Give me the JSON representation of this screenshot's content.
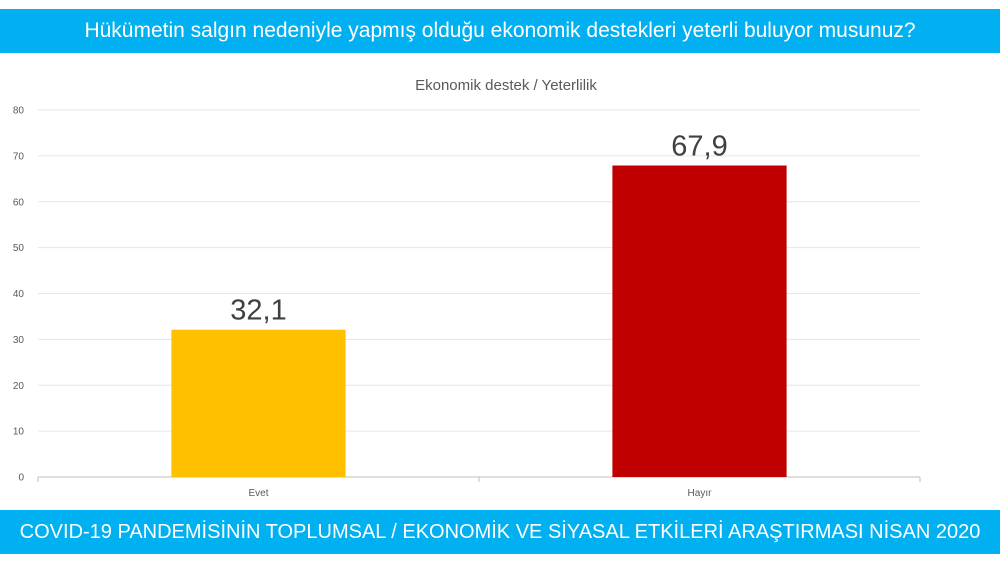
{
  "header": {
    "question": "Hükümetin salgın nedeniyle yapmış olduğu ekonomik destekleri yeterli buluyor musunuz?"
  },
  "footer": {
    "caption": "COVID-19 PANDEMİSİNİN TOPLUMSAL / EKONOMİK VE SİYASAL ETKİLERİ ARAŞTIRMASI NİSAN 2020"
  },
  "chart_data": {
    "type": "bar",
    "title": "Ekonomik destek / Yeterlilik",
    "categories": [
      "Evet",
      "Hayır"
    ],
    "values": [
      32.1,
      67.9
    ],
    "value_labels": [
      "32,1",
      "67,9"
    ],
    "colors": [
      "#ffc000",
      "#c00000"
    ],
    "ylim": [
      0,
      80
    ],
    "yticks": [
      0,
      10,
      20,
      30,
      40,
      50,
      60,
      70,
      80
    ],
    "grid": true,
    "legend": "none"
  }
}
